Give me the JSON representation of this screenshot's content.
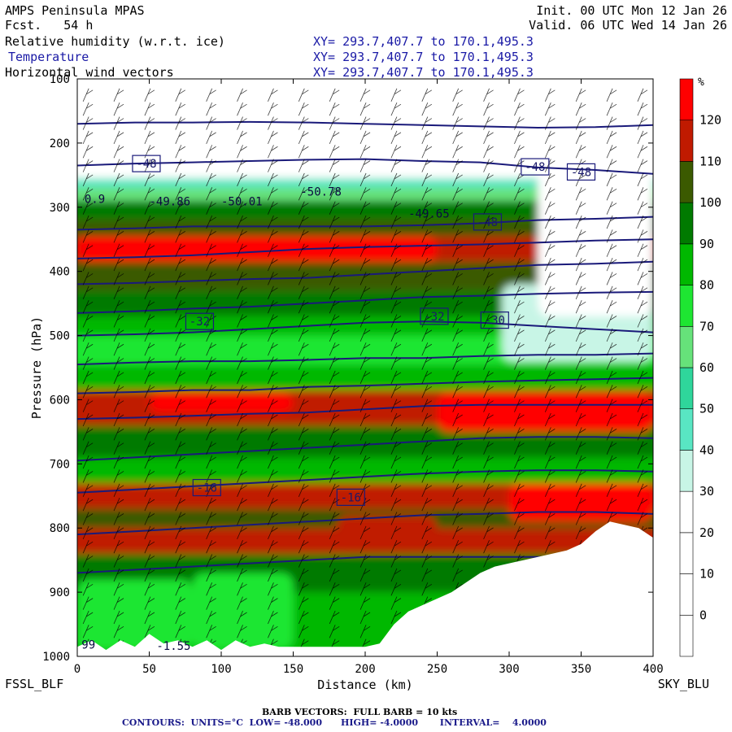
{
  "header": {
    "model": "AMPS Peninsula MPAS",
    "fcst": "Fcst.   54 h",
    "init": "Init. 00 UTC Mon 12 Jan 26",
    "valid": "Valid. 06 UTC Wed 14 Jan 26",
    "fields": [
      {
        "name": "Relative humidity (w.r.t. ice)",
        "xy": "XY= 293.7,407.7 to 170.1,495.3"
      },
      {
        "name": "Temperature",
        "xy": "XY= 293.7,407.7 to 170.1,495.3"
      },
      {
        "name": "Horizontal wind vectors",
        "xy": "XY= 293.7,407.7 to 170.1,495.3"
      }
    ]
  },
  "endpoints": {
    "left": "FSSL_BLF",
    "right": "SKY_BLU"
  },
  "footer": {
    "barb": "BARB VECTORS:  FULL BARB = 10 kts",
    "contours": "CONTOURS:  UNITS=°C  LOW= -48.000      HIGH= -4.0000       INTERVAL=    4.0000"
  },
  "colors": {
    "rh_lt20": "#ffffff",
    "rh_20_30": "#ffffff",
    "rh_30_40": "#c8f5e6",
    "rh_40_50": "#59e6c3",
    "rh_50_60": "#2fd69b",
    "rh_60_70": "#66e27a",
    "rh_70_80": "#1ee632",
    "rh_80_90": "#00b800",
    "rh_90_100": "#007a00",
    "rh_100_110": "#3b5a00",
    "rh_110_120": "#c01a00",
    "rh_gt120": "#ff0000",
    "contour": "#1a1a7a",
    "barb": "#000000"
  },
  "chart_data": {
    "type": "heatmap",
    "title": "Relative humidity (w.r.t. ice) cross-section",
    "xlabel": "Distance (km)",
    "ylabel": "Pressure (hPa)",
    "xlim": [
      0,
      400
    ],
    "ylim": [
      1000,
      100
    ],
    "x_ticks": [
      0,
      50,
      100,
      150,
      200,
      250,
      300,
      350,
      400
    ],
    "y_ticks": [
      100,
      200,
      300,
      400,
      500,
      600,
      700,
      800,
      900,
      1000
    ],
    "colorbar": {
      "unit": "%",
      "levels": [
        0,
        10,
        20,
        30,
        40,
        50,
        60,
        70,
        80,
        90,
        100,
        110,
        120
      ],
      "colors": [
        "#ffffff",
        "#ffffff",
        "#ffffff",
        "#c8f5e6",
        "#59e6c3",
        "#2fd69b",
        "#66e27a",
        "#1ee632",
        "#00b800",
        "#007a00",
        "#3b5a00",
        "#c01a00",
        "#ff0000"
      ]
    },
    "rh_layers": [
      {
        "p_top": 100,
        "p_bot": 255,
        "rh": 10
      },
      {
        "p_top": 255,
        "p_bot": 270,
        "rh": 45
      },
      {
        "p_top": 270,
        "p_bot": 290,
        "rh": 65
      },
      {
        "p_top": 290,
        "p_bot": 320,
        "rh": 95
      },
      {
        "p_top": 320,
        "p_bot": 345,
        "rh": 105
      },
      {
        "p_top": 345,
        "p_bot": 385,
        "rh": 115
      },
      {
        "p_top": 385,
        "p_bot": 430,
        "rh": 105
      },
      {
        "p_top": 430,
        "p_bot": 470,
        "rh": 95
      },
      {
        "p_top": 470,
        "p_bot": 500,
        "rh": 80
      },
      {
        "p_top": 500,
        "p_bot": 545,
        "rh": 70
      },
      {
        "p_top": 545,
        "p_bot": 585,
        "rh": 85
      },
      {
        "p_top": 585,
        "p_bot": 640,
        "rh": 115
      },
      {
        "p_top": 640,
        "p_bot": 690,
        "rh": 95
      },
      {
        "p_top": 690,
        "p_bot": 730,
        "rh": 85
      },
      {
        "p_top": 730,
        "p_bot": 770,
        "rh": 110
      },
      {
        "p_top": 770,
        "p_bot": 800,
        "rh": 105
      },
      {
        "p_top": 800,
        "p_bot": 840,
        "rh": 112
      },
      {
        "p_top": 840,
        "p_bot": 900,
        "rh": 95
      },
      {
        "p_top": 900,
        "p_bot": 1000,
        "rh": 85
      }
    ],
    "rh_features": [
      {
        "x0": 0,
        "x1": 250,
        "p_top": 345,
        "p_bot": 385,
        "rh": 125
      },
      {
        "x0": 295,
        "x1": 400,
        "p_top": 420,
        "p_bot": 540,
        "rh": 35
      },
      {
        "x0": 320,
        "x1": 400,
        "p_top": 100,
        "p_bot": 470,
        "rh": 15
      },
      {
        "x0": 250,
        "x1": 400,
        "p_top": 590,
        "p_bot": 650,
        "rh": 125
      },
      {
        "x0": 50,
        "x1": 150,
        "p_top": 590,
        "p_bot": 620,
        "rh": 122
      },
      {
        "x0": 0,
        "x1": 80,
        "p_top": 880,
        "p_bot": 990,
        "rh": 75
      },
      {
        "x0": 80,
        "x1": 150,
        "p_top": 870,
        "p_bot": 990,
        "rh": 72
      },
      {
        "x0": 180,
        "x1": 250,
        "p_top": 780,
        "p_bot": 840,
        "rh": 118
      },
      {
        "x0": 300,
        "x1": 400,
        "p_top": 730,
        "p_bot": 790,
        "rh": 122
      }
    ],
    "terrain": {
      "x": [
        0,
        10,
        20,
        30,
        40,
        50,
        60,
        70,
        80,
        90,
        100,
        110,
        120,
        130,
        140,
        150,
        160,
        170,
        180,
        190,
        200,
        210,
        220,
        230,
        240,
        250,
        260,
        270,
        280,
        290,
        300,
        310,
        320,
        330,
        340,
        350,
        360,
        370,
        380,
        390,
        400
      ],
      "p": [
        985,
        975,
        990,
        975,
        985,
        965,
        980,
        975,
        985,
        975,
        990,
        975,
        985,
        980,
        985,
        985,
        985,
        985,
        985,
        985,
        985,
        980,
        950,
        930,
        920,
        910,
        900,
        885,
        870,
        860,
        855,
        850,
        845,
        840,
        835,
        825,
        805,
        790,
        795,
        800,
        815
      ]
    },
    "temperature_contours": [
      {
        "level": -56,
        "p": [
          170,
          168,
          168,
          167,
          168,
          170,
          172,
          174,
          176,
          175,
          172
        ]
      },
      {
        "level": -52,
        "p": [
          235,
          232,
          230,
          228,
          226,
          225,
          228,
          230,
          238,
          242,
          248
        ]
      },
      {
        "level": -48,
        "p": [
          335,
          333,
          330,
          330,
          330,
          330,
          328,
          325,
          320,
          318,
          315
        ]
      },
      {
        "level": -44,
        "p": [
          380,
          378,
          375,
          370,
          365,
          362,
          360,
          358,
          355,
          352,
          350
        ]
      },
      {
        "level": -40,
        "p": [
          420,
          418,
          415,
          412,
          410,
          405,
          400,
          395,
          390,
          388,
          385
        ]
      },
      {
        "level": -36,
        "p": [
          465,
          462,
          458,
          455,
          450,
          445,
          440,
          438,
          435,
          433,
          432
        ]
      },
      {
        "level": -32,
        "p": [
          500,
          498,
          495,
          490,
          485,
          480,
          478,
          480,
          485,
          490,
          495
        ]
      },
      {
        "level": -28,
        "p": [
          545,
          542,
          540,
          540,
          538,
          535,
          535,
          532,
          530,
          530,
          528
        ]
      },
      {
        "level": -24,
        "p": [
          590,
          588,
          585,
          585,
          580,
          578,
          575,
          572,
          570,
          568,
          566
        ]
      },
      {
        "level": -20,
        "p": [
          630,
          628,
          625,
          622,
          620,
          615,
          610,
          608,
          608,
          608,
          608
        ]
      },
      {
        "level": -16,
        "p": [
          695,
          690,
          685,
          680,
          675,
          670,
          665,
          660,
          658,
          658,
          660
        ]
      },
      {
        "level": -12,
        "p": [
          745,
          740,
          735,
          730,
          725,
          720,
          715,
          712,
          710,
          710,
          712
        ]
      },
      {
        "level": -8,
        "p": [
          810,
          805,
          800,
          795,
          790,
          785,
          780,
          778,
          775,
          775,
          778
        ]
      },
      {
        "level": -4,
        "p": [
          870,
          865,
          860,
          855,
          850,
          845,
          845,
          845,
          845,
          845,
          845
        ]
      }
    ],
    "contour_labels": [
      {
        "text": "-48",
        "x": 48,
        "p": 232
      },
      {
        "text": "-48",
        "x": 318,
        "p": 237
      },
      {
        "text": "-48",
        "x": 350,
        "p": 245
      },
      {
        "text": "-48",
        "x": 285,
        "p": 323
      },
      {
        "text": "-32",
        "x": 85,
        "p": 478
      },
      {
        "text": "-32",
        "x": 248,
        "p": 470
      },
      {
        "text": "-30",
        "x": 290,
        "p": 476
      },
      {
        "text": "-16",
        "x": 90,
        "p": 737
      },
      {
        "text": "-16",
        "x": 190,
        "p": 752
      }
    ],
    "value_labels": [
      {
        "text": "0.9",
        "x": 5,
        "p": 293
      },
      {
        "text": "-49.86",
        "x": 50,
        "p": 297
      },
      {
        "text": "-50.01",
        "x": 100,
        "p": 297
      },
      {
        "text": "-50.78",
        "x": 155,
        "p": 282
      },
      {
        "text": "-49.65",
        "x": 230,
        "p": 316
      },
      {
        "text": "99",
        "x": 3,
        "p": 988
      },
      {
        "text": "-1.55",
        "x": 55,
        "p": 990
      }
    ]
  }
}
